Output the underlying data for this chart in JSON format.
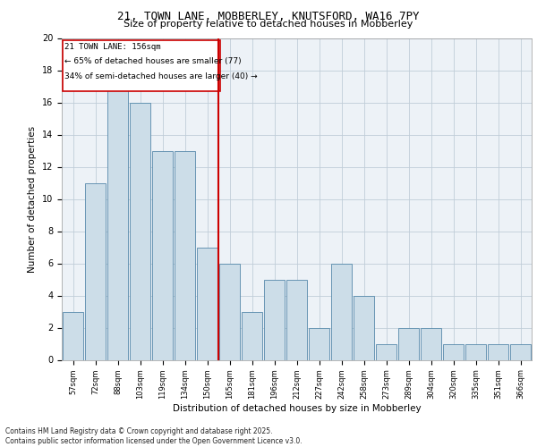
{
  "title_line1": "21, TOWN LANE, MOBBERLEY, KNUTSFORD, WA16 7PY",
  "title_line2": "Size of property relative to detached houses in Mobberley",
  "xlabel": "Distribution of detached houses by size in Mobberley",
  "ylabel": "Number of detached properties",
  "categories": [
    "57sqm",
    "72sqm",
    "88sqm",
    "103sqm",
    "119sqm",
    "134sqm",
    "150sqm",
    "165sqm",
    "181sqm",
    "196sqm",
    "212sqm",
    "227sqm",
    "242sqm",
    "258sqm",
    "273sqm",
    "289sqm",
    "304sqm",
    "320sqm",
    "335sqm",
    "351sqm",
    "366sqm"
  ],
  "values": [
    3,
    11,
    17,
    16,
    13,
    13,
    7,
    6,
    3,
    5,
    5,
    2,
    6,
    4,
    1,
    2,
    2,
    1,
    1,
    1,
    1
  ],
  "bar_color": "#ccdde8",
  "bar_edge_color": "#5588aa",
  "grid_color": "#c0cdd8",
  "vline_x": 6.5,
  "vline_label": "21 TOWN LANE: 156sqm",
  "annotation_line1": "← 65% of detached houses are smaller (77)",
  "annotation_line2": "34% of semi-detached houses are larger (40) →",
  "ylim": [
    0,
    20
  ],
  "yticks": [
    0,
    2,
    4,
    6,
    8,
    10,
    12,
    14,
    16,
    18,
    20
  ],
  "box_color": "#cc0000",
  "footer_line1": "Contains HM Land Registry data © Crown copyright and database right 2025.",
  "footer_line2": "Contains public sector information licensed under the Open Government Licence v3.0.",
  "bg_color": "#edf2f7"
}
